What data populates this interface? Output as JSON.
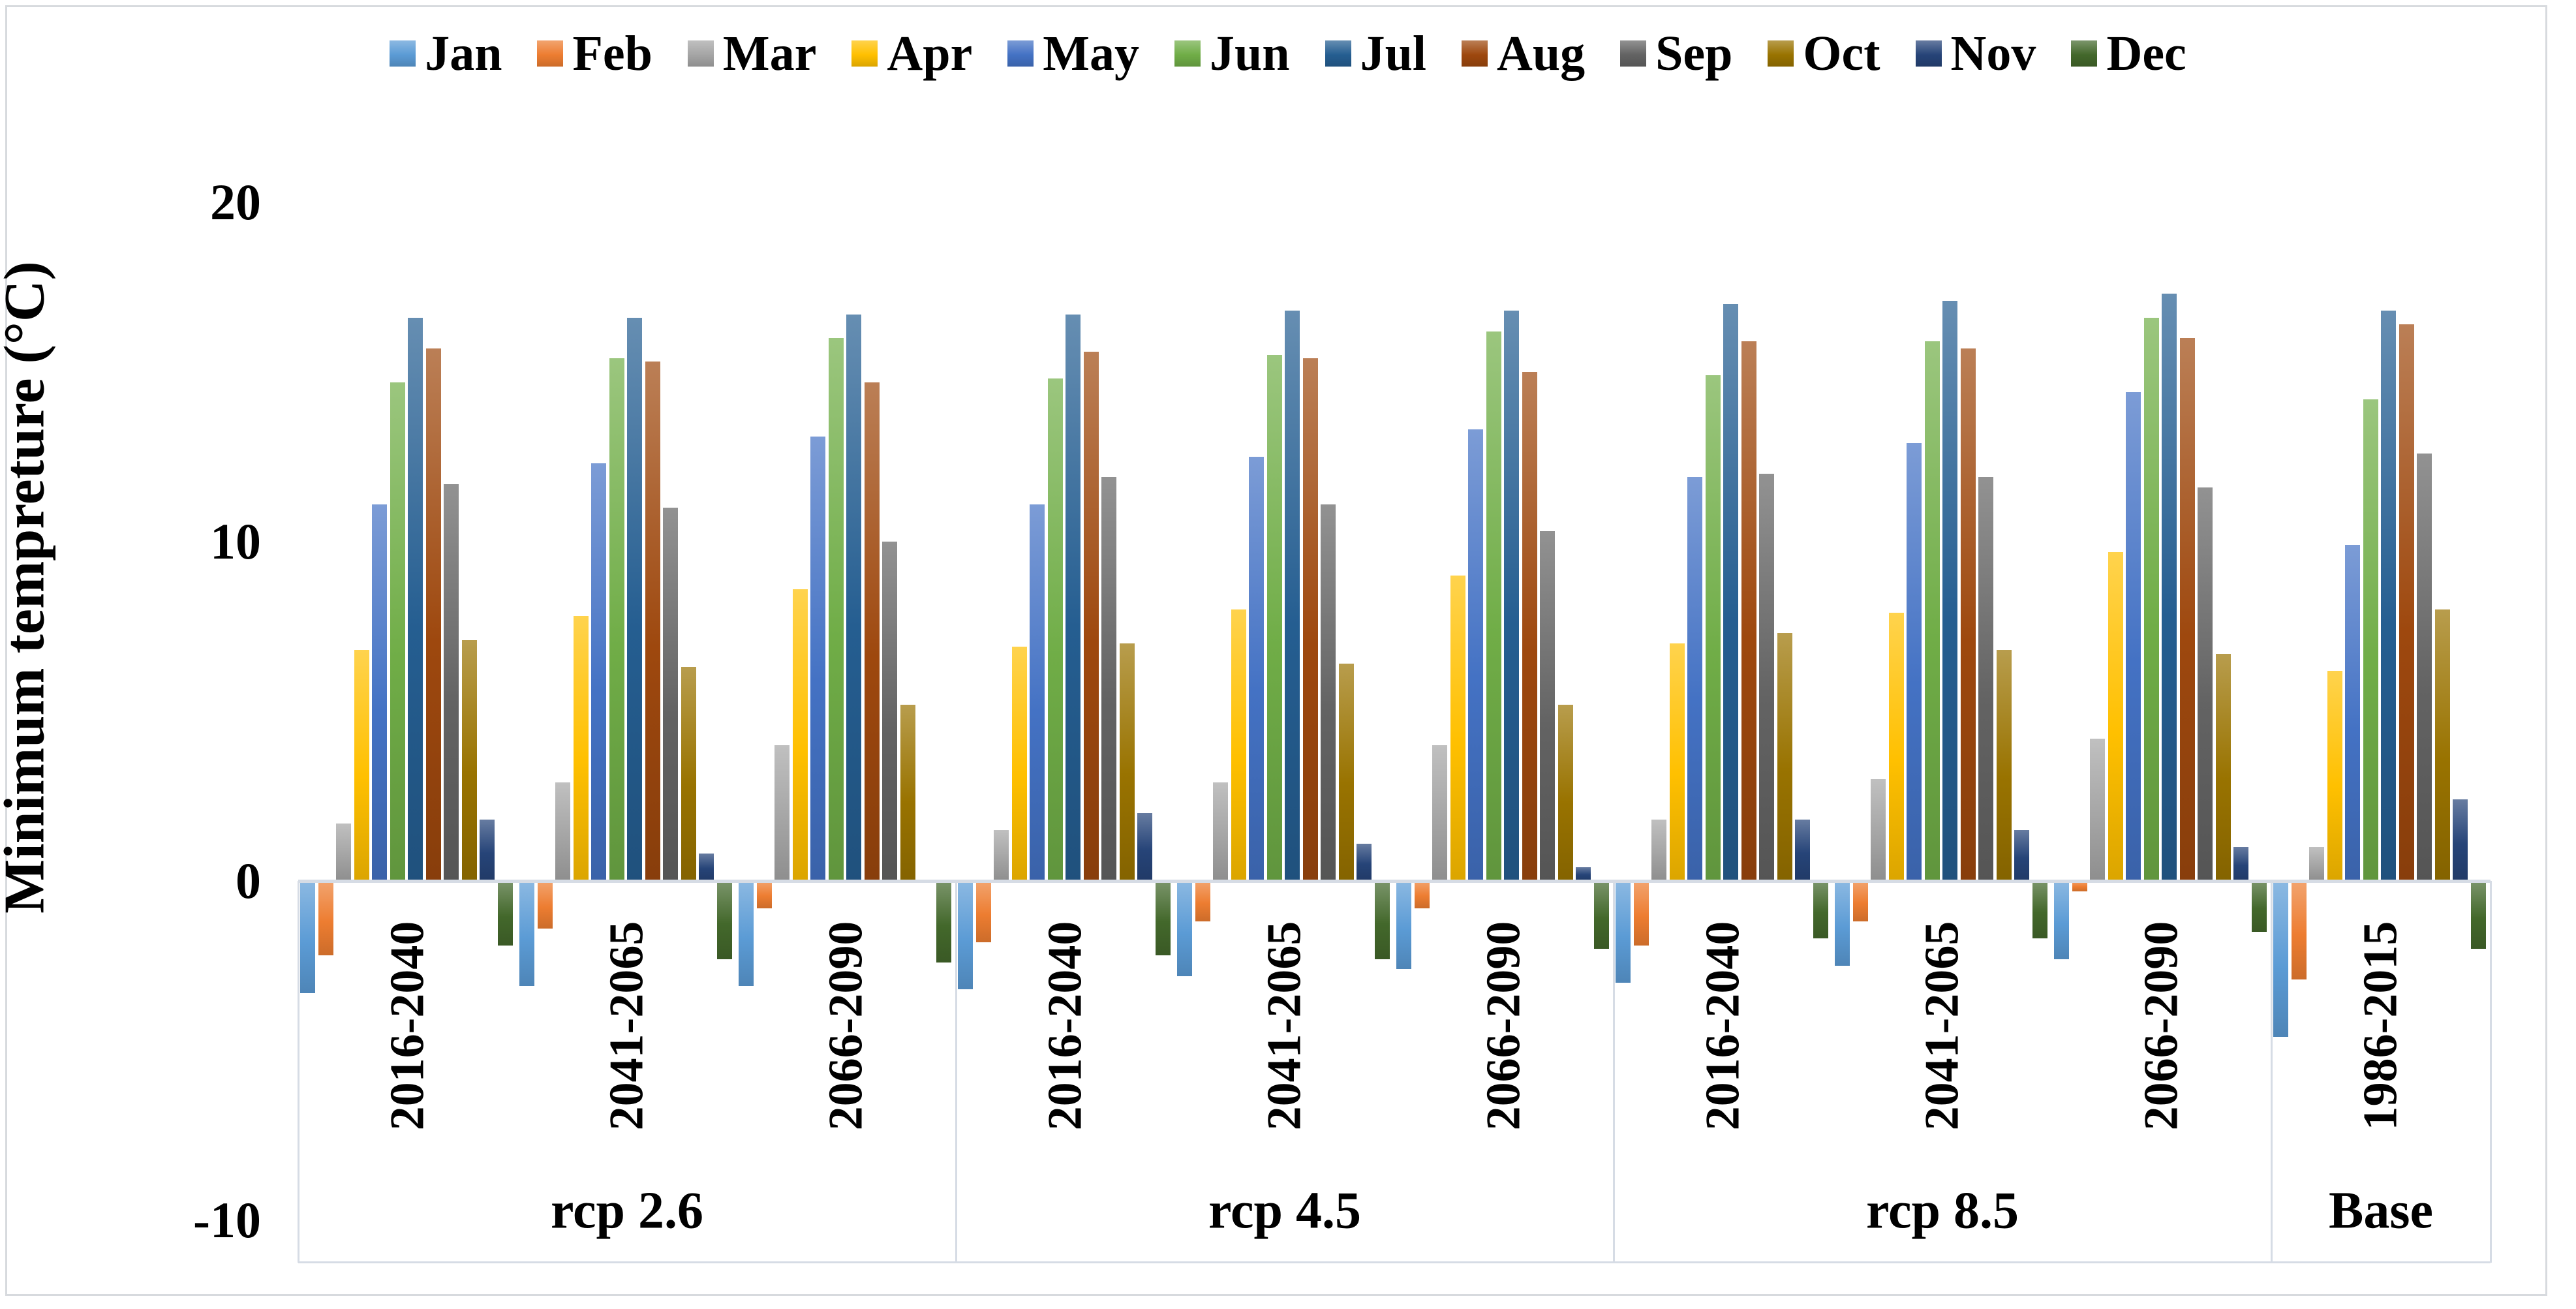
{
  "chart_data": {
    "type": "bar",
    "title": "",
    "ylabel": "Minimum tempreture (°C)",
    "ylim": [
      -10,
      20
    ],
    "yticks": [
      20,
      10,
      0,
      -10
    ],
    "grid": false,
    "legend_position": "top",
    "axis_line_color": "#d6dce5",
    "categories": [
      {
        "scenario": "rcp 2.6",
        "period": "2016-2040"
      },
      {
        "scenario": "rcp 2.6",
        "period": "2041-2065"
      },
      {
        "scenario": "rcp 2.6",
        "period": "2066-2090"
      },
      {
        "scenario": "rcp 4.5",
        "period": "2016-2040"
      },
      {
        "scenario": "rcp 4.5",
        "period": "2041-2065"
      },
      {
        "scenario": "rcp 4.5",
        "period": "2066-2090"
      },
      {
        "scenario": "rcp 8.5",
        "period": "2016-2040"
      },
      {
        "scenario": "rcp 8.5",
        "period": "2041-2065"
      },
      {
        "scenario": "rcp 8.5",
        "period": "2066-2090"
      },
      {
        "scenario": "Base",
        "period": "1986-2015"
      }
    ],
    "scenario_panels": [
      {
        "label": "rcp 2.6",
        "group_count": 3
      },
      {
        "label": "rcp 4.5",
        "group_count": 3
      },
      {
        "label": "rcp 8.5",
        "group_count": 3
      },
      {
        "label": "Base",
        "group_count": 1
      }
    ],
    "series": [
      {
        "name": "Jan",
        "color": "#5B9BD5",
        "values": [
          -3.3,
          -3.1,
          -3.1,
          -3.2,
          -2.8,
          -2.6,
          -3.0,
          -2.5,
          -2.3,
          -4.6
        ]
      },
      {
        "name": "Feb",
        "color": "#ED7D31",
        "values": [
          -2.2,
          -1.4,
          -0.8,
          -1.8,
          -1.2,
          -0.8,
          -1.9,
          -1.2,
          -0.3,
          -2.9
        ]
      },
      {
        "name": "Mar",
        "color": "#A5A5A5",
        "values": [
          1.7,
          2.9,
          4.0,
          1.5,
          2.9,
          4.0,
          1.8,
          3.0,
          4.2,
          1.0
        ]
      },
      {
        "name": "Apr",
        "color": "#FFC000",
        "values": [
          6.8,
          7.8,
          8.6,
          6.9,
          8.0,
          9.0,
          7.0,
          7.9,
          9.7,
          6.2
        ]
      },
      {
        "name": "May",
        "color": "#4472C4",
        "values": [
          11.1,
          12.3,
          13.1,
          11.1,
          12.5,
          13.3,
          11.9,
          12.9,
          14.4,
          9.9
        ]
      },
      {
        "name": "Jun",
        "color": "#70AD47",
        "values": [
          14.7,
          15.4,
          16.0,
          14.8,
          15.5,
          16.2,
          14.9,
          15.9,
          16.6,
          14.2
        ]
      },
      {
        "name": "Jul",
        "color": "#255E91",
        "values": [
          16.6,
          16.6,
          16.7,
          16.7,
          16.8,
          16.8,
          17.0,
          17.1,
          17.3,
          16.8
        ]
      },
      {
        "name": "Aug",
        "color": "#9E480E",
        "values": [
          15.7,
          15.3,
          14.7,
          15.6,
          15.4,
          15.0,
          15.9,
          15.7,
          16.0,
          16.4
        ]
      },
      {
        "name": "Sep",
        "color": "#636363",
        "values": [
          11.7,
          11.0,
          10.0,
          11.9,
          11.1,
          10.3,
          12.0,
          11.9,
          11.6,
          12.6
        ]
      },
      {
        "name": "Oct",
        "color": "#997300",
        "values": [
          7.1,
          6.3,
          5.2,
          7.0,
          6.4,
          5.2,
          7.3,
          6.8,
          6.7,
          8.0
        ]
      },
      {
        "name": "Nov",
        "color": "#264478",
        "values": [
          1.8,
          0.8,
          0.0,
          2.0,
          1.1,
          0.4,
          1.8,
          1.5,
          1.0,
          2.4
        ]
      },
      {
        "name": "Dec",
        "color": "#43682B",
        "values": [
          -1.9,
          -2.3,
          -2.4,
          -2.2,
          -2.3,
          -2.0,
          -1.7,
          -1.7,
          -1.5,
          -2.0
        ]
      }
    ]
  }
}
